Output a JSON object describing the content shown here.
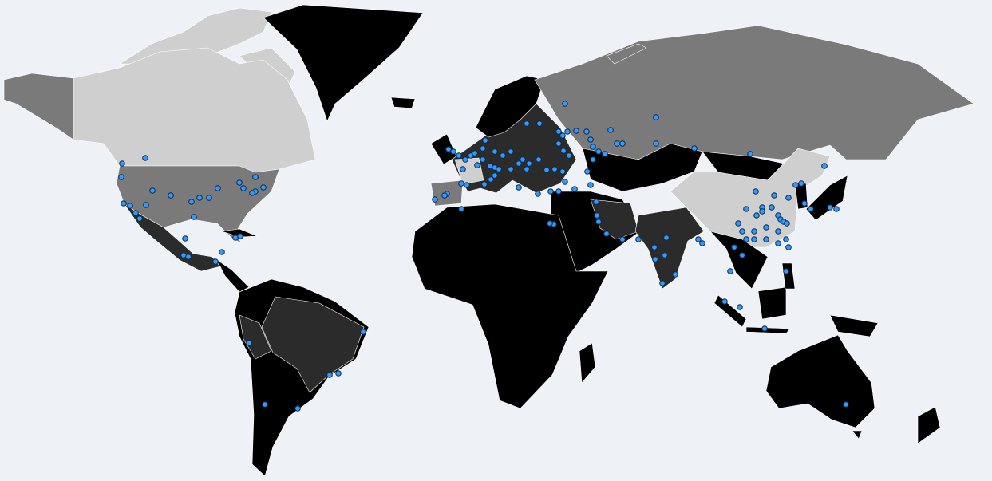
{
  "map": {
    "projection": "world",
    "background_color": "#eef2f7",
    "marker_color": "#3399ff",
    "marker_stroke": "#0a2a4a",
    "region_shades": {
      "darkest": "#000000",
      "dark": "#2b2b2b",
      "medium": "#7a7a7a",
      "light": "#cfcfcf"
    }
  }
}
